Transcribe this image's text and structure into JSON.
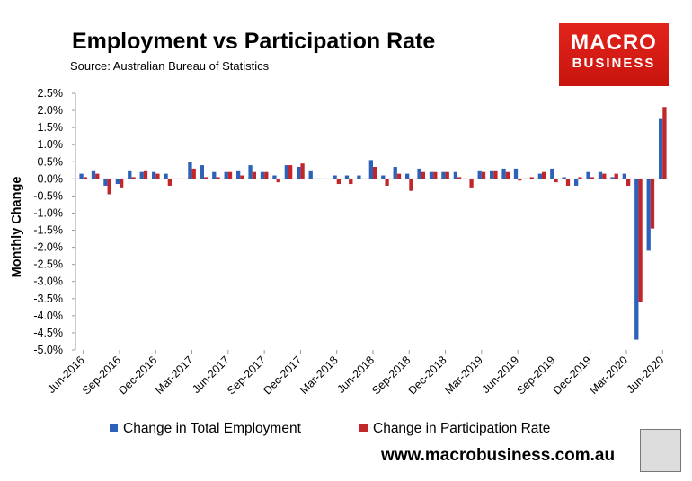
{
  "header": {
    "title": "Employment vs Participation Rate",
    "source": "Source: Australian Bureau of Statistics"
  },
  "logo": {
    "line1": "MACRO",
    "line2": "BUSINESS"
  },
  "footer": {
    "website": "www.macrobusiness.com.au"
  },
  "colors": {
    "employment": "#2e62b8",
    "participation": "#c0262a",
    "axis": "#9a9a9a"
  },
  "chart_data": {
    "type": "bar",
    "title": "Employment vs Participation Rate",
    "xlabel": "",
    "ylabel": "Monthly Change",
    "ylim": [
      -5.0,
      2.5
    ],
    "yticks": [
      "2.5%",
      "2.0%",
      "1.5%",
      "1.0%",
      "0.5%",
      "0.0%",
      "-0.5%",
      "-1.0%",
      "-1.5%",
      "-2.0%",
      "-2.5%",
      "-3.0%",
      "-3.5%",
      "-4.0%",
      "-4.5%",
      "-5.0%"
    ],
    "tick_labels": [
      "Jun-2016",
      "Sep-2016",
      "Dec-2016",
      "Mar-2017",
      "Jun-2017",
      "Sep-2017",
      "Dec-2017",
      "Mar-2018",
      "Jun-2018",
      "Sep-2018",
      "Dec-2018",
      "Mar-2019",
      "Jun-2019",
      "Sep-2019",
      "Dec-2019",
      "Mar-2020",
      "Jun-2020"
    ],
    "categories": [
      "Jun-2016",
      "Jul-2016",
      "Aug-2016",
      "Sep-2016",
      "Oct-2016",
      "Nov-2016",
      "Dec-2016",
      "Jan-2017",
      "Feb-2017",
      "Mar-2017",
      "Apr-2017",
      "May-2017",
      "Jun-2017",
      "Jul-2017",
      "Aug-2017",
      "Sep-2017",
      "Oct-2017",
      "Nov-2017",
      "Dec-2017",
      "Jan-2018",
      "Feb-2018",
      "Mar-2018",
      "Apr-2018",
      "May-2018",
      "Jun-2018",
      "Jul-2018",
      "Aug-2018",
      "Sep-2018",
      "Oct-2018",
      "Nov-2018",
      "Dec-2018",
      "Jan-2019",
      "Feb-2019",
      "Mar-2019",
      "Apr-2019",
      "May-2019",
      "Jun-2019",
      "Jul-2019",
      "Aug-2019",
      "Sep-2019",
      "Oct-2019",
      "Nov-2019",
      "Dec-2019",
      "Jan-2020",
      "Feb-2020",
      "Mar-2020",
      "Apr-2020",
      "May-2020",
      "Jun-2020"
    ],
    "series": [
      {
        "name": "Change in Total Employment",
        "values": [
          0.15,
          0.25,
          -0.2,
          -0.15,
          0.25,
          0.2,
          0.2,
          0.15,
          0.0,
          0.5,
          0.4,
          0.2,
          0.2,
          0.25,
          0.4,
          0.2,
          0.1,
          0.4,
          0.35,
          0.25,
          0.0,
          0.1,
          0.1,
          0.1,
          0.55,
          0.1,
          0.35,
          0.15,
          0.3,
          0.2,
          0.2,
          0.2,
          0.0,
          0.25,
          0.25,
          0.3,
          0.3,
          0.0,
          0.15,
          0.3,
          0.05,
          -0.2,
          0.2,
          0.2,
          0.05,
          0.15,
          -4.7,
          -2.1,
          1.75
        ]
      },
      {
        "name": "Change in Participation Rate",
        "values": [
          0.05,
          0.15,
          -0.45,
          -0.25,
          0.05,
          0.25,
          0.15,
          -0.2,
          0.0,
          0.3,
          0.05,
          0.05,
          0.2,
          0.1,
          0.2,
          0.2,
          -0.1,
          0.4,
          0.45,
          0.0,
          0.0,
          -0.15,
          -0.15,
          0.0,
          0.35,
          -0.2,
          0.15,
          -0.35,
          0.2,
          0.2,
          0.2,
          0.05,
          -0.25,
          0.2,
          0.25,
          0.2,
          -0.05,
          0.05,
          0.2,
          -0.1,
          -0.2,
          0.05,
          0.05,
          0.15,
          0.15,
          -0.2,
          -3.6,
          -1.45,
          2.1
        ]
      }
    ]
  }
}
